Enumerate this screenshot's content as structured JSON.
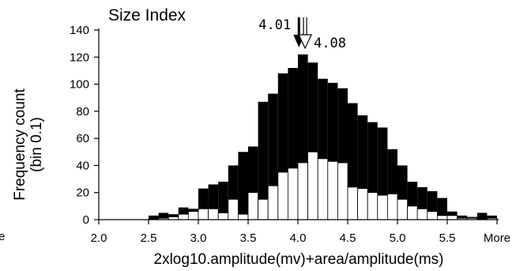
{
  "chart_data": {
    "type": "bar",
    "title": "Size Index",
    "xlabel": "2xlog10.amplitude(mv)+area/amplitude(ms)",
    "ylabel": [
      "Frequency count",
      "(bin 0.1)"
    ],
    "x_tick_labels": [
      "2.0",
      "2.5",
      "3.0",
      "3.5",
      "4.0",
      "4.5",
      "5.0",
      "5.5",
      "More"
    ],
    "x_tick_values": [
      2.0,
      2.5,
      3.0,
      3.5,
      4.0,
      4.5,
      5.0,
      5.5,
      6.0
    ],
    "y_tick_values": [
      0,
      20,
      40,
      60,
      80,
      100,
      120,
      140
    ],
    "ylim": [
      0,
      140
    ],
    "xlim": [
      2.0,
      6.0
    ],
    "bin_width": 0.1,
    "bin_starts": [
      2.5,
      2.6,
      2.7,
      2.8,
      2.9,
      3.0,
      3.1,
      3.2,
      3.3,
      3.4,
      3.5,
      3.6,
      3.7,
      3.8,
      3.9,
      4.0,
      4.1,
      4.2,
      4.3,
      4.4,
      4.5,
      4.6,
      4.7,
      4.8,
      4.9,
      5.0,
      5.1,
      5.2,
      5.3,
      5.4,
      5.5,
      5.6,
      5.7,
      5.8,
      5.9,
      6.0
    ],
    "series": [
      {
        "fill": "#000000",
        "values": [
          3,
          5,
          4,
          9,
          8,
          23,
          26,
          28,
          40,
          50,
          54,
          87,
          93,
          108,
          112,
          122,
          116,
          104,
          101,
          97,
          86,
          77,
          72,
          68,
          52,
          40,
          28,
          24,
          21,
          16,
          6,
          3,
          2,
          5,
          3,
          5
        ]
      },
      {
        "fill": "#ffffff",
        "values": [
          0,
          1,
          2,
          4,
          6,
          8,
          8,
          5,
          15,
          4,
          20,
          15,
          25,
          35,
          38,
          42,
          50,
          45,
          43,
          42,
          24,
          23,
          20,
          18,
          19,
          15,
          10,
          8,
          6,
          3,
          3,
          1,
          1,
          0,
          1,
          0
        ]
      }
    ],
    "annotations": [
      {
        "label": "4.01",
        "x": 4.01,
        "marker": "filled-arrow"
      },
      {
        "label": "4.08",
        "x": 4.08,
        "marker": "open-arrow"
      }
    ],
    "partial_text_left": "e"
  }
}
